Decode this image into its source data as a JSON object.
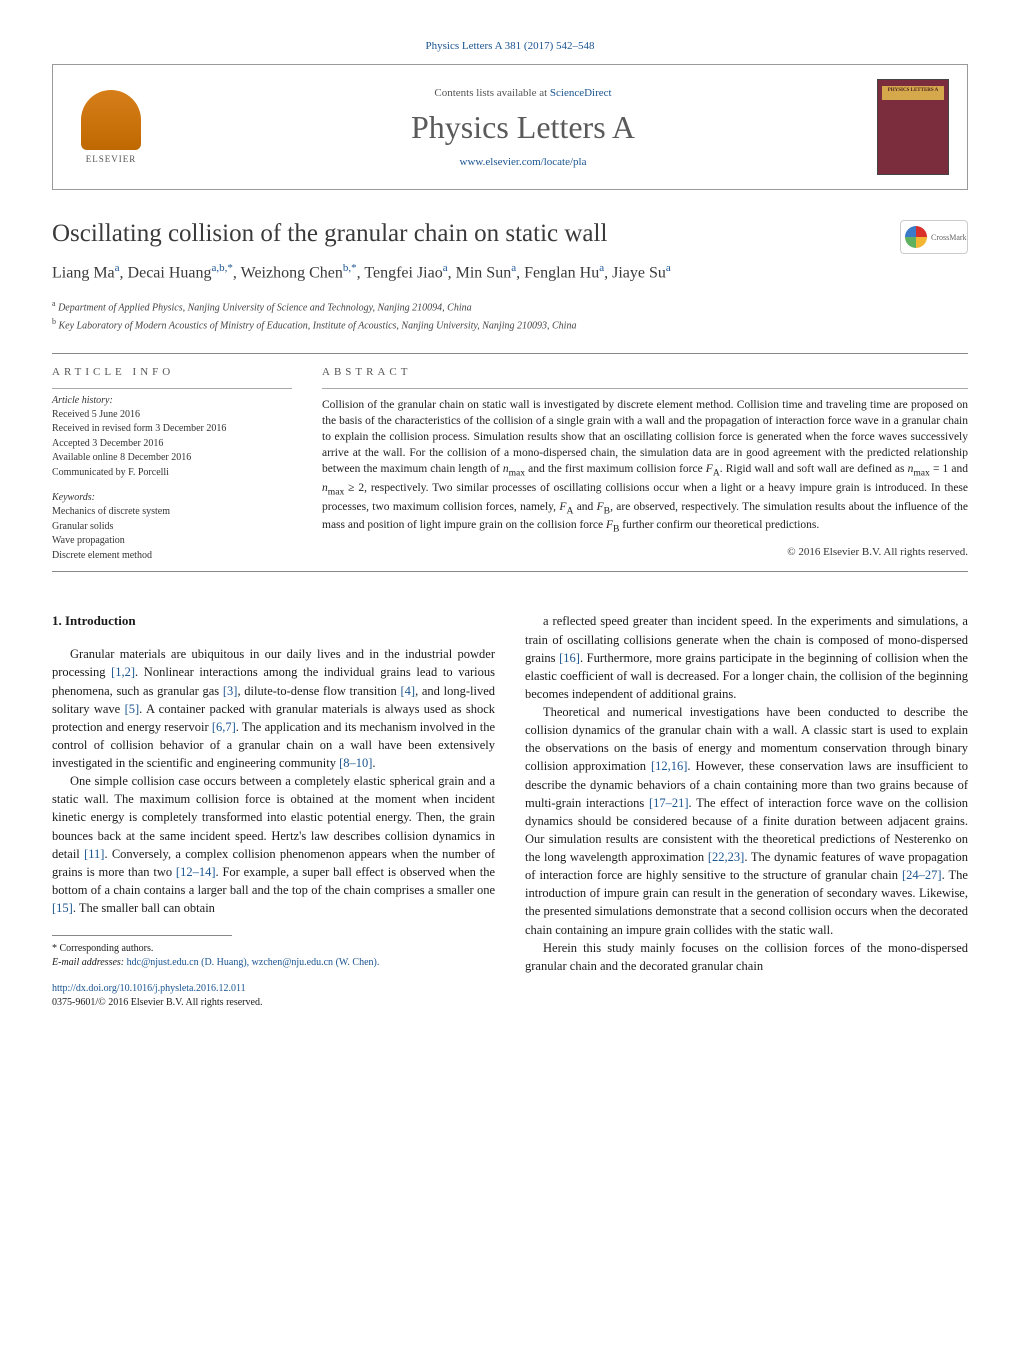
{
  "journal_ref": "Physics Letters A 381 (2017) 542–548",
  "header": {
    "publisher": "ELSEVIER",
    "contents_prefix": "Contents lists available at ",
    "contents_link": "ScienceDirect",
    "journal_title": "Physics Letters A",
    "journal_url": "www.elsevier.com/locate/pla",
    "cover_label": "PHYSICS LETTERS A"
  },
  "crossmark_label": "CrossMark",
  "title": "Oscillating collision of the granular chain on static wall",
  "authors_html": "Liang Ma|a|, Decai Huang|a,b,*|, Weizhong Chen|b,*|, Tengfei Jiao|a|, Min Sun|a|, Fenglan Hu|a|, Jiaye Su|a|",
  "affiliations": {
    "a": "Department of Applied Physics, Nanjing University of Science and Technology, Nanjing 210094, China",
    "b": "Key Laboratory of Modern Acoustics of Ministry of Education, Institute of Acoustics, Nanjing University, Nanjing 210093, China"
  },
  "article_info": {
    "heading": "ARTICLE INFO",
    "history_heading": "Article history:",
    "history": [
      "Received 5 June 2016",
      "Received in revised form 3 December 2016",
      "Accepted 3 December 2016",
      "Available online 8 December 2016",
      "Communicated by F. Porcelli"
    ],
    "keywords_heading": "Keywords:",
    "keywords": [
      "Mechanics of discrete system",
      "Granular solids",
      "Wave propagation",
      "Discrete element method"
    ]
  },
  "abstract": {
    "heading": "ABSTRACT",
    "text": "Collision of the granular chain on static wall is investigated by discrete element method. Collision time and traveling time are proposed on the basis of the characteristics of the collision of a single grain with a wall and the propagation of interaction force wave in a granular chain to explain the collision process. Simulation results show that an oscillating collision force is generated when the force waves successively arrive at the wall. For the collision of a mono-dispersed chain, the simulation data are in good agreement with the predicted relationship between the maximum chain length of nmax and the first maximum collision force FA. Rigid wall and soft wall are defined as nmax = 1 and nmax ≥ 2, respectively. Two similar processes of oscillating collisions occur when a light or a heavy impure grain is introduced. In these processes, two maximum collision forces, namely, FA and FB, are observed, respectively. The simulation results about the influence of the mass and position of light impure grain on the collision force FB further confirm our theoretical predictions.",
    "copyright": "© 2016 Elsevier B.V. All rights reserved."
  },
  "body": {
    "section_heading": "1. Introduction",
    "left_paras": [
      "Granular materials are ubiquitous in our daily lives and in the industrial powder processing [1,2]. Nonlinear interactions among the individual grains lead to various phenomena, such as granular gas [3], dilute-to-dense flow transition [4], and long-lived solitary wave [5]. A container packed with granular materials is always used as shock protection and energy reservoir [6,7]. The application and its mechanism involved in the control of collision behavior of a granular chain on a wall have been extensively investigated in the scientific and engineering community [8–10].",
      "One simple collision case occurs between a completely elastic spherical grain and a static wall. The maximum collision force is obtained at the moment when incident kinetic energy is completely transformed into elastic potential energy. Then, the grain bounces back at the same incident speed. Hertz's law describes collision dynamics in detail [11]. Conversely, a complex collision phenomenon appears when the number of grains is more than two [12–14]. For example, a super ball effect is observed when the bottom of a chain contains a larger ball and the top of the chain comprises a smaller one [15]. The smaller ball can obtain"
    ],
    "right_paras": [
      "a reflected speed greater than incident speed. In the experiments and simulations, a train of oscillating collisions generate when the chain is composed of mono-dispersed grains [16]. Furthermore, more grains participate in the beginning of collision when the elastic coefficient of wall is decreased. For a longer chain, the collision of the beginning becomes independent of additional grains.",
      "Theoretical and numerical investigations have been conducted to describe the collision dynamics of the granular chain with a wall. A classic start is used to explain the observations on the basis of energy and momentum conservation through binary collision approximation [12,16]. However, these conservation laws are insufficient to describe the dynamic behaviors of a chain containing more than two grains because of multi-grain interactions [17–21]. The effect of interaction force wave on the collision dynamics should be considered because of a finite duration between adjacent grains. Our simulation results are consistent with the theoretical predictions of Nesterenko on the long wavelength approximation [22,23]. The dynamic features of wave propagation of interaction force are highly sensitive to the structure of granular chain [24–27]. The introduction of impure grain can result in the generation of secondary waves. Likewise, the presented simulations demonstrate that a second collision occurs when the decorated chain containing an impure grain collides with the static wall.",
      "Herein this study mainly focuses on the collision forces of the mono-dispersed granular chain and the decorated granular chain"
    ]
  },
  "footnotes": {
    "corresponding": "* Corresponding authors.",
    "email_label": "E-mail addresses: ",
    "emails": "hdc@njust.edu.cn (D. Huang), wzchen@nju.edu.cn (W. Chen)."
  },
  "doi": {
    "url": "http://dx.doi.org/10.1016/j.physleta.2016.12.011",
    "issn_line": "0375-9601/© 2016 Elsevier B.V. All rights reserved."
  },
  "colors": {
    "link": "#1a5490",
    "text": "#1a1a1a",
    "gray": "#555"
  }
}
